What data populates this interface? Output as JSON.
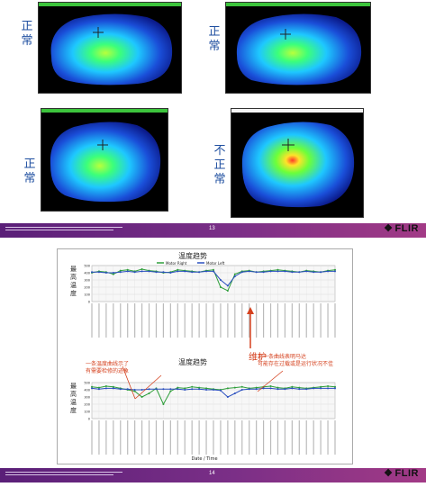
{
  "slide1": {
    "captions": [
      "正常",
      "正常",
      "正常",
      "不正常"
    ],
    "page_number": "13",
    "brand": "FLIR"
  },
  "slide2": {
    "top_chart": {
      "title": "温度趋势",
      "ylabel": "最高温度",
      "legend": [
        "Motor Right",
        "Motor Left"
      ]
    },
    "bottom_chart": {
      "title": "温度趋势",
      "ylabel": "最高温度"
    },
    "xlabel": "Date / Time",
    "annotation_maintenance": "维护",
    "annotation_left": [
      "一条温度曲线示了",
      "有需要检修的迹象"
    ],
    "annotation_right": [
      "另一条曲线表明马达",
      "可能存在过载或是运行状况不佳"
    ],
    "page_number": "14",
    "brand": "FLIR"
  },
  "chart_data": [
    {
      "type": "line",
      "title": "温度趋势",
      "ylabel": "最高温度",
      "ylim": [
        0,
        500
      ],
      "series": [
        {
          "name": "Motor Right",
          "values": [
            400,
            420,
            410,
            380,
            430,
            440,
            420,
            450,
            430,
            420,
            400,
            410,
            440,
            430,
            420,
            410,
            430,
            440,
            200,
            150,
            380,
            420,
            430,
            410,
            420,
            430,
            440,
            430,
            420,
            410,
            430,
            420,
            410,
            430,
            440
          ]
        },
        {
          "name": "Motor Left",
          "values": [
            410,
            410,
            400,
            400,
            410,
            420,
            410,
            420,
            420,
            410,
            410,
            400,
            420,
            420,
            410,
            410,
            420,
            420,
            300,
            220,
            350,
            410,
            420,
            410,
            410,
            420,
            420,
            420,
            410,
            410,
            420,
            410,
            410,
            420,
            420
          ]
        }
      ]
    },
    {
      "type": "line",
      "title": "温度趋势",
      "ylabel": "最高温度",
      "ylim": [
        0,
        500
      ],
      "series": [
        {
          "name": "Motor Right",
          "values": [
            440,
            430,
            450,
            440,
            420,
            400,
            380,
            300,
            350,
            420,
            200,
            380,
            430,
            420,
            440,
            430,
            420,
            410,
            400,
            420,
            430,
            440,
            420,
            430,
            440,
            450,
            430,
            420,
            440,
            430,
            420,
            430,
            440,
            450,
            440
          ]
        },
        {
          "name": "Motor Left",
          "values": [
            420,
            410,
            420,
            420,
            410,
            410,
            400,
            400,
            410,
            410,
            410,
            410,
            410,
            400,
            410,
            410,
            400,
            400,
            390,
            300,
            350,
            400,
            410,
            410,
            420,
            420,
            410,
            410,
            420,
            410,
            410,
            420,
            420,
            420,
            420
          ]
        }
      ]
    }
  ]
}
